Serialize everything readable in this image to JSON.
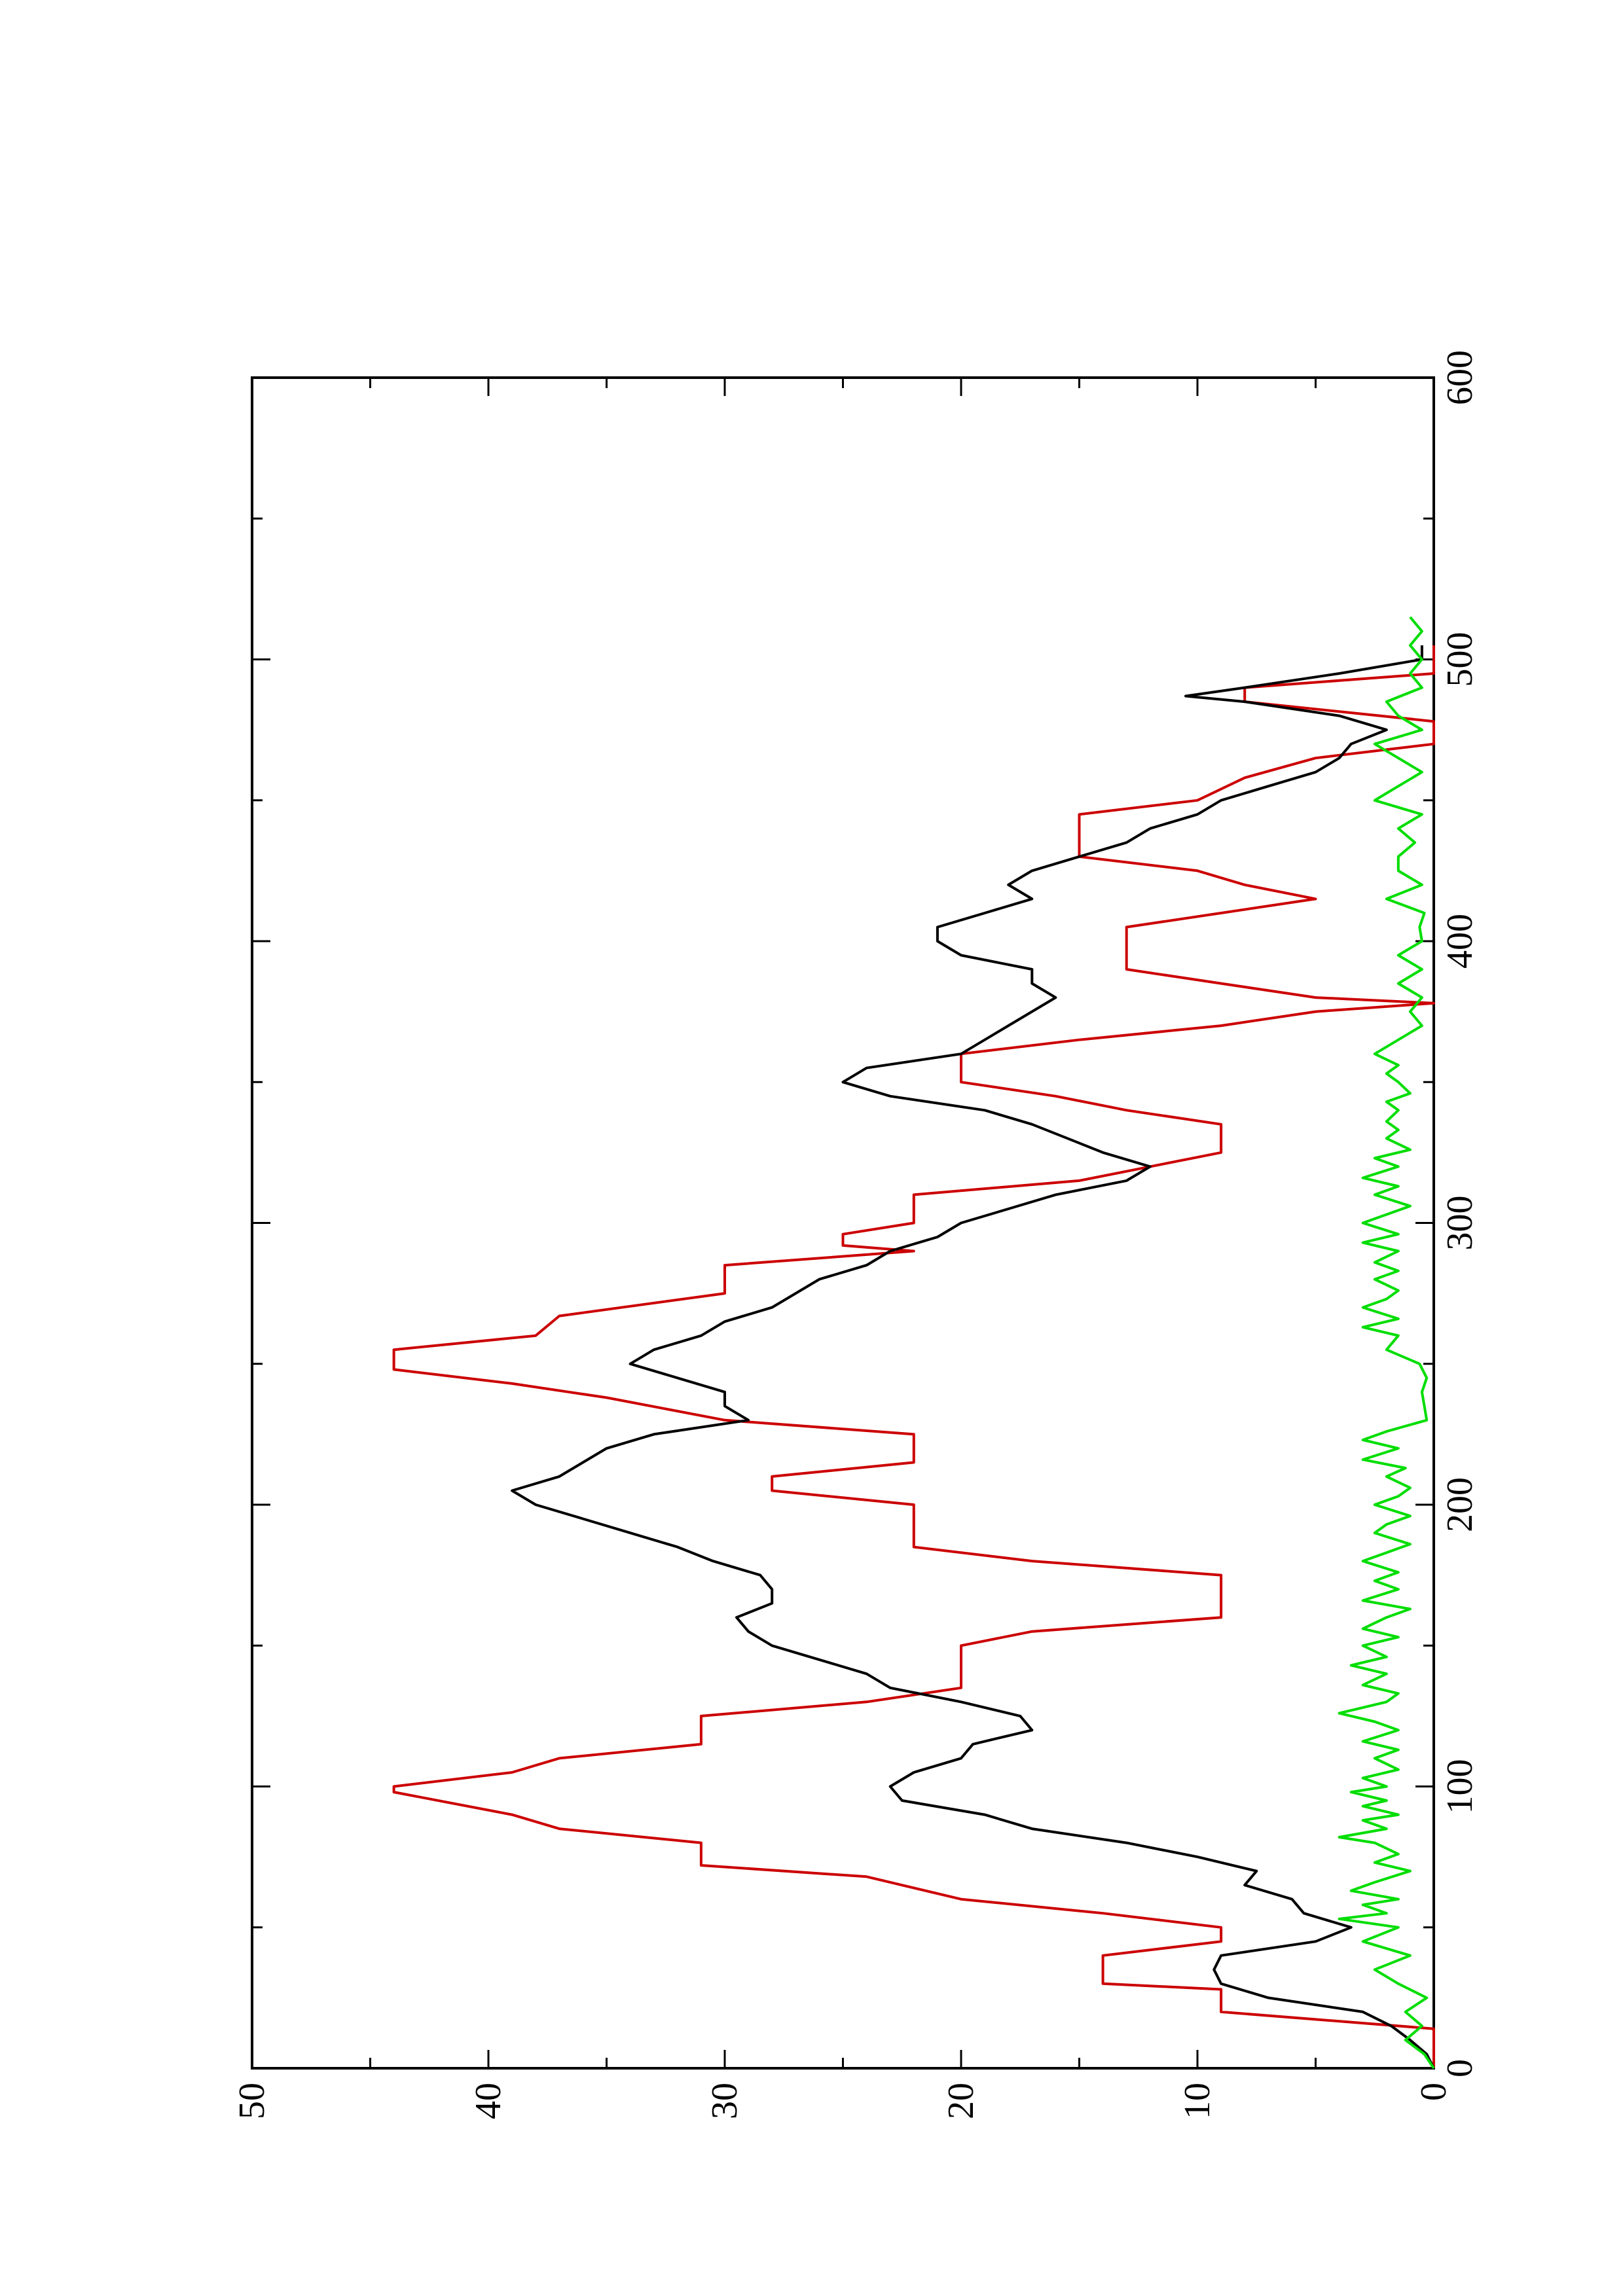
{
  "chart_data": {
    "type": "line",
    "orientation": "rotated-90-ccw",
    "title": "",
    "xlabel": "",
    "ylabel": "",
    "xlim": [
      0,
      600
    ],
    "ylim": [
      0,
      50
    ],
    "x_ticks": [
      0,
      100,
      200,
      300,
      400,
      500,
      600
    ],
    "y_ticks": [
      0,
      10,
      20,
      30,
      40,
      50
    ],
    "x_tick_labels": [
      "0",
      "100",
      "200",
      "300",
      "400",
      "500",
      "600"
    ],
    "y_tick_labels": [
      "0",
      "10",
      "20",
      "30",
      "40",
      "50"
    ],
    "grid": false,
    "legend": "none",
    "series": [
      {
        "color": "#cc0000",
        "points": [
          [
            0,
            0
          ],
          [
            14,
            0
          ],
          [
            20,
            9
          ],
          [
            28,
            9
          ],
          [
            30,
            14
          ],
          [
            40,
            14
          ],
          [
            45,
            9
          ],
          [
            50,
            9
          ],
          [
            55,
            14
          ],
          [
            60,
            20
          ],
          [
            68,
            24
          ],
          [
            72,
            31
          ],
          [
            80,
            31
          ],
          [
            85,
            37
          ],
          [
            90,
            39
          ],
          [
            98,
            44
          ],
          [
            100,
            44
          ],
          [
            105,
            39
          ],
          [
            110,
            37
          ],
          [
            115,
            31
          ],
          [
            125,
            31
          ],
          [
            130,
            24
          ],
          [
            135,
            20
          ],
          [
            150,
            20
          ],
          [
            155,
            17
          ],
          [
            160,
            9
          ],
          [
            175,
            9
          ],
          [
            180,
            17
          ],
          [
            185,
            22
          ],
          [
            200,
            22
          ],
          [
            205,
            28
          ],
          [
            210,
            28
          ],
          [
            215,
            22
          ],
          [
            225,
            22
          ],
          [
            230,
            30
          ],
          [
            238,
            35
          ],
          [
            243,
            39
          ],
          [
            248,
            44
          ],
          [
            255,
            44
          ],
          [
            260,
            38
          ],
          [
            267,
            37
          ],
          [
            275,
            30
          ],
          [
            285,
            30
          ],
          [
            290,
            22
          ],
          [
            292,
            25
          ],
          [
            296,
            25
          ],
          [
            300,
            22
          ],
          [
            310,
            22
          ],
          [
            315,
            15
          ],
          [
            320,
            12
          ],
          [
            325,
            9
          ],
          [
            335,
            9
          ],
          [
            340,
            13
          ],
          [
            345,
            16
          ],
          [
            350,
            20
          ],
          [
            360,
            20
          ],
          [
            365,
            15
          ],
          [
            370,
            9
          ],
          [
            375,
            5
          ],
          [
            378,
            0
          ],
          [
            380,
            5
          ],
          [
            385,
            9
          ],
          [
            390,
            13
          ],
          [
            405,
            13
          ],
          [
            410,
            9
          ],
          [
            415,
            5
          ],
          [
            420,
            8
          ],
          [
            425,
            10
          ],
          [
            430,
            15
          ],
          [
            445,
            15
          ],
          [
            450,
            10
          ],
          [
            458,
            8
          ],
          [
            465,
            5
          ],
          [
            470,
            0
          ],
          [
            478,
            0
          ],
          [
            485,
            8
          ],
          [
            490,
            8
          ],
          [
            495,
            0
          ],
          [
            505,
            0
          ]
        ]
      },
      {
        "color": "#000000",
        "points": [
          [
            0,
            0
          ],
          [
            5,
            0.3
          ],
          [
            10,
            1
          ],
          [
            15,
            1.8
          ],
          [
            20,
            3
          ],
          [
            25,
            7
          ],
          [
            30,
            9
          ],
          [
            35,
            9.3
          ],
          [
            40,
            9
          ],
          [
            45,
            5
          ],
          [
            50,
            3.5
          ],
          [
            55,
            5.5
          ],
          [
            60,
            6
          ],
          [
            65,
            8
          ],
          [
            70,
            7.5
          ],
          [
            75,
            10
          ],
          [
            80,
            13
          ],
          [
            85,
            17
          ],
          [
            90,
            19
          ],
          [
            95,
            22.5
          ],
          [
            100,
            23
          ],
          [
            105,
            22
          ],
          [
            110,
            20
          ],
          [
            115,
            19.5
          ],
          [
            120,
            17
          ],
          [
            125,
            17.5
          ],
          [
            130,
            20
          ],
          [
            135,
            23
          ],
          [
            140,
            24
          ],
          [
            150,
            28
          ],
          [
            155,
            29
          ],
          [
            160,
            29.5
          ],
          [
            165,
            28
          ],
          [
            170,
            28
          ],
          [
            175,
            28.5
          ],
          [
            180,
            30.5
          ],
          [
            185,
            32
          ],
          [
            190,
            34
          ],
          [
            195,
            36
          ],
          [
            200,
            38
          ],
          [
            205,
            39
          ],
          [
            210,
            37
          ],
          [
            215,
            36
          ],
          [
            220,
            35
          ],
          [
            225,
            33
          ],
          [
            230,
            29
          ],
          [
            235,
            30
          ],
          [
            240,
            30
          ],
          [
            245,
            32
          ],
          [
            250,
            34
          ],
          [
            255,
            33
          ],
          [
            260,
            31
          ],
          [
            265,
            30
          ],
          [
            270,
            28
          ],
          [
            275,
            27
          ],
          [
            280,
            26
          ],
          [
            285,
            24
          ],
          [
            290,
            23
          ],
          [
            295,
            21
          ],
          [
            300,
            20
          ],
          [
            305,
            18
          ],
          [
            310,
            16
          ],
          [
            315,
            13
          ],
          [
            320,
            12
          ],
          [
            325,
            14
          ],
          [
            330,
            15.5
          ],
          [
            335,
            17
          ],
          [
            340,
            19
          ],
          [
            345,
            23
          ],
          [
            350,
            25
          ],
          [
            355,
            24
          ],
          [
            360,
            20
          ],
          [
            365,
            19
          ],
          [
            370,
            18
          ],
          [
            375,
            17
          ],
          [
            380,
            16
          ],
          [
            385,
            17
          ],
          [
            390,
            17
          ],
          [
            395,
            20
          ],
          [
            400,
            21
          ],
          [
            405,
            21
          ],
          [
            410,
            19
          ],
          [
            415,
            17
          ],
          [
            420,
            18
          ],
          [
            425,
            17
          ],
          [
            430,
            15
          ],
          [
            435,
            13
          ],
          [
            440,
            12
          ],
          [
            445,
            10
          ],
          [
            450,
            9
          ],
          [
            455,
            7
          ],
          [
            460,
            5
          ],
          [
            465,
            4
          ],
          [
            470,
            3.5
          ],
          [
            475,
            2
          ],
          [
            480,
            4
          ],
          [
            485,
            8
          ],
          [
            487,
            10.5
          ],
          [
            490,
            8
          ],
          [
            495,
            4
          ],
          [
            500,
            0.5
          ],
          [
            505,
            0.5
          ]
        ]
      },
      {
        "color": "#00dd00",
        "points": [
          [
            0,
            0
          ],
          [
            5,
            0.4
          ],
          [
            10,
            1.2
          ],
          [
            15,
            0.5
          ],
          [
            20,
            1.2
          ],
          [
            25,
            0.3
          ],
          [
            30,
            1.5
          ],
          [
            35,
            2.5
          ],
          [
            40,
            1
          ],
          [
            45,
            3
          ],
          [
            50,
            1.5
          ],
          [
            53,
            4
          ],
          [
            55,
            2
          ],
          [
            58,
            3
          ],
          [
            60,
            1.5
          ],
          [
            63,
            3.5
          ],
          [
            66,
            2.5
          ],
          [
            70,
            1
          ],
          [
            73,
            2.5
          ],
          [
            76,
            1.5
          ],
          [
            80,
            2.5
          ],
          [
            82,
            4
          ],
          [
            85,
            2
          ],
          [
            88,
            3
          ],
          [
            90,
            1.5
          ],
          [
            93,
            3
          ],
          [
            95,
            2
          ],
          [
            98,
            3.5
          ],
          [
            100,
            2
          ],
          [
            103,
            3
          ],
          [
            106,
            1.5
          ],
          [
            110,
            2.5
          ],
          [
            113,
            1.5
          ],
          [
            116,
            3
          ],
          [
            120,
            1.5
          ],
          [
            123,
            2.5
          ],
          [
            126,
            4
          ],
          [
            130,
            2
          ],
          [
            133,
            1.5
          ],
          [
            136,
            3
          ],
          [
            140,
            2
          ],
          [
            143,
            3.5
          ],
          [
            146,
            2
          ],
          [
            150,
            3
          ],
          [
            153,
            1.5
          ],
          [
            156,
            3
          ],
          [
            160,
            2
          ],
          [
            163,
            1
          ],
          [
            166,
            3
          ],
          [
            170,
            1.5
          ],
          [
            173,
            2.5
          ],
          [
            176,
            1.5
          ],
          [
            180,
            3
          ],
          [
            183,
            2
          ],
          [
            186,
            1
          ],
          [
            190,
            2.5
          ],
          [
            193,
            2
          ],
          [
            196,
            1
          ],
          [
            200,
            2.5
          ],
          [
            203,
            1.5
          ],
          [
            206,
            1
          ],
          [
            210,
            2
          ],
          [
            213,
            1.2
          ],
          [
            216,
            3
          ],
          [
            220,
            1.5
          ],
          [
            223,
            3
          ],
          [
            226,
            2
          ],
          [
            230,
            0.3
          ],
          [
            235,
            0.4
          ],
          [
            240,
            0.5
          ],
          [
            245,
            0.3
          ],
          [
            250,
            0.6
          ],
          [
            255,
            2
          ],
          [
            260,
            1.5
          ],
          [
            263,
            3
          ],
          [
            266,
            1.5
          ],
          [
            270,
            3
          ],
          [
            273,
            2
          ],
          [
            276,
            1.5
          ],
          [
            280,
            2.5
          ],
          [
            283,
            1.5
          ],
          [
            286,
            2.5
          ],
          [
            290,
            1.5
          ],
          [
            293,
            3
          ],
          [
            296,
            1.5
          ],
          [
            300,
            3
          ],
          [
            303,
            2
          ],
          [
            306,
            1
          ],
          [
            310,
            2.5
          ],
          [
            313,
            1.5
          ],
          [
            316,
            3
          ],
          [
            320,
            1.5
          ],
          [
            323,
            2.5
          ],
          [
            326,
            1
          ],
          [
            330,
            2
          ],
          [
            333,
            1.5
          ],
          [
            336,
            2
          ],
          [
            340,
            1.5
          ],
          [
            343,
            2
          ],
          [
            346,
            1
          ],
          [
            350,
            1.5
          ],
          [
            353,
            2
          ],
          [
            356,
            1.5
          ],
          [
            360,
            2.5
          ],
          [
            365,
            1.5
          ],
          [
            370,
            0.5
          ],
          [
            375,
            1
          ],
          [
            380,
            0.5
          ],
          [
            385,
            1.5
          ],
          [
            390,
            0.5
          ],
          [
            395,
            1.5
          ],
          [
            400,
            0.5
          ],
          [
            405,
            0.6
          ],
          [
            410,
            0.4
          ],
          [
            415,
            2
          ],
          [
            420,
            0.5
          ],
          [
            425,
            1.5
          ],
          [
            430,
            1.5
          ],
          [
            435,
            0.8
          ],
          [
            440,
            1.5
          ],
          [
            445,
            0.5
          ],
          [
            450,
            2.5
          ],
          [
            455,
            1.5
          ],
          [
            460,
            0.5
          ],
          [
            465,
            1.5
          ],
          [
            470,
            2.5
          ],
          [
            475,
            0.5
          ],
          [
            480,
            1.5
          ],
          [
            485,
            2
          ],
          [
            490,
            0.5
          ],
          [
            495,
            1
          ],
          [
            500,
            0.5
          ],
          [
            505,
            1
          ],
          [
            510,
            0.5
          ],
          [
            515,
            1
          ]
        ]
      }
    ]
  }
}
